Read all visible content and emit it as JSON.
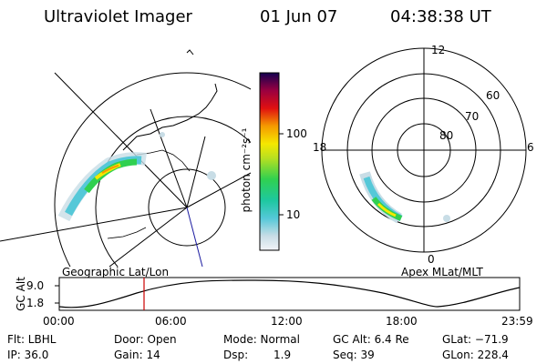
{
  "header": {
    "instrument": "Ultraviolet Imager",
    "date": "01 Jun 07",
    "time": "04:38:38 UT"
  },
  "geo_panel": {
    "label": "Geographic Lat/Lon"
  },
  "apex_panel": {
    "label": "Apex MLat/MLT",
    "mlt_labels": {
      "top": "12",
      "left": "18",
      "right": "6",
      "bottom": "0"
    },
    "lat_labels": [
      "60",
      "70",
      "80"
    ]
  },
  "colorbar": {
    "unit": "photon cm⁻²s⁻¹",
    "ticks": [
      "100",
      "10"
    ]
  },
  "altitude_strip": {
    "ylabel": "GC Alt",
    "ymax": "9.0",
    "ymin": "1.8",
    "times": [
      "00:00",
      "06:00",
      "12:00",
      "18:00",
      "23:59"
    ],
    "marker_color": "#cc0000"
  },
  "info": {
    "flt": "Flt: LBHL",
    "ip": "IP: 36.0",
    "door": "Door: Open",
    "gain": "Gain: 14",
    "mode": "Mode: Normal",
    "dsp_label": "Dsp:",
    "dsp_value": "1.9",
    "gcalt": "GC Alt: 6.4 Re",
    "seq": "Seq: 39",
    "glat": "GLat: −71.9",
    "glon": "GLon: 228.4"
  }
}
